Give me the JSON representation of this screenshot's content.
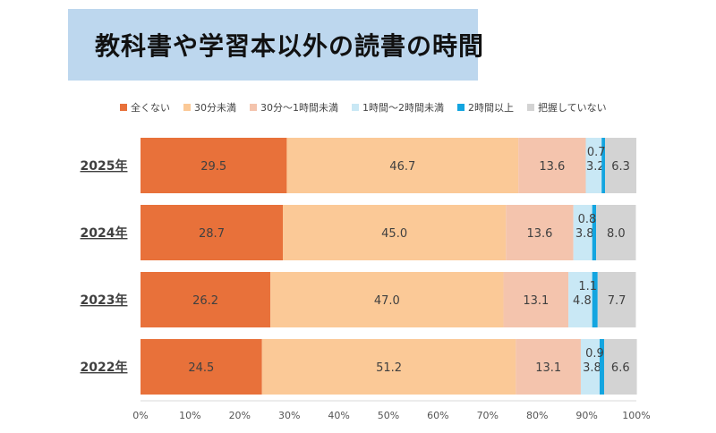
{
  "chart_data": {
    "type": "bar",
    "orientation": "horizontal",
    "stacked": true,
    "percent_stacked": true,
    "title": "教科書や学習本以外の読書の時間",
    "categories": [
      "2025年",
      "2024年",
      "2023年",
      "2022年"
    ],
    "series": [
      {
        "name": "全くない",
        "color": "#e8713a",
        "values": [
          29.5,
          28.7,
          26.2,
          24.5
        ],
        "labels": [
          "29.5",
          "28.7",
          "26.2",
          "24.5"
        ]
      },
      {
        "name": "30分未満",
        "color": "#fbc997",
        "values": [
          46.7,
          45.0,
          47.0,
          51.2
        ],
        "labels": [
          "46.7",
          "45.0",
          "47.0",
          "51.2"
        ]
      },
      {
        "name": "30分〜1時間未満",
        "color": "#f4c4ad",
        "values": [
          13.6,
          13.6,
          13.1,
          13.1
        ],
        "labels": [
          "13.6",
          "13.6",
          "13.1",
          "13.1"
        ]
      },
      {
        "name": "1時間〜2時間未満",
        "color": "#c9e8f5",
        "values": [
          3.2,
          3.8,
          4.8,
          3.8
        ],
        "labels": [
          "3.2",
          "3.8",
          "4.8",
          "3.8"
        ]
      },
      {
        "name": "2時間以上",
        "color": "#13a5e0",
        "values": [
          0.7,
          0.8,
          1.1,
          0.9
        ],
        "labels": [
          "0.7",
          "0.8",
          "1.1",
          "0.9"
        ]
      },
      {
        "name": "把握していない",
        "color": "#d3d3d3",
        "values": [
          6.3,
          8.0,
          7.7,
          6.6
        ],
        "labels": [
          "6.3",
          "8.0",
          "7.7",
          "6.6"
        ]
      }
    ],
    "xlim": [
      0,
      100
    ],
    "xticks": [
      "0%",
      "10%",
      "20%",
      "30%",
      "40%",
      "50%",
      "60%",
      "70%",
      "80%",
      "90%",
      "100%"
    ],
    "xlabel": "",
    "ylabel": "",
    "legend": "top"
  }
}
